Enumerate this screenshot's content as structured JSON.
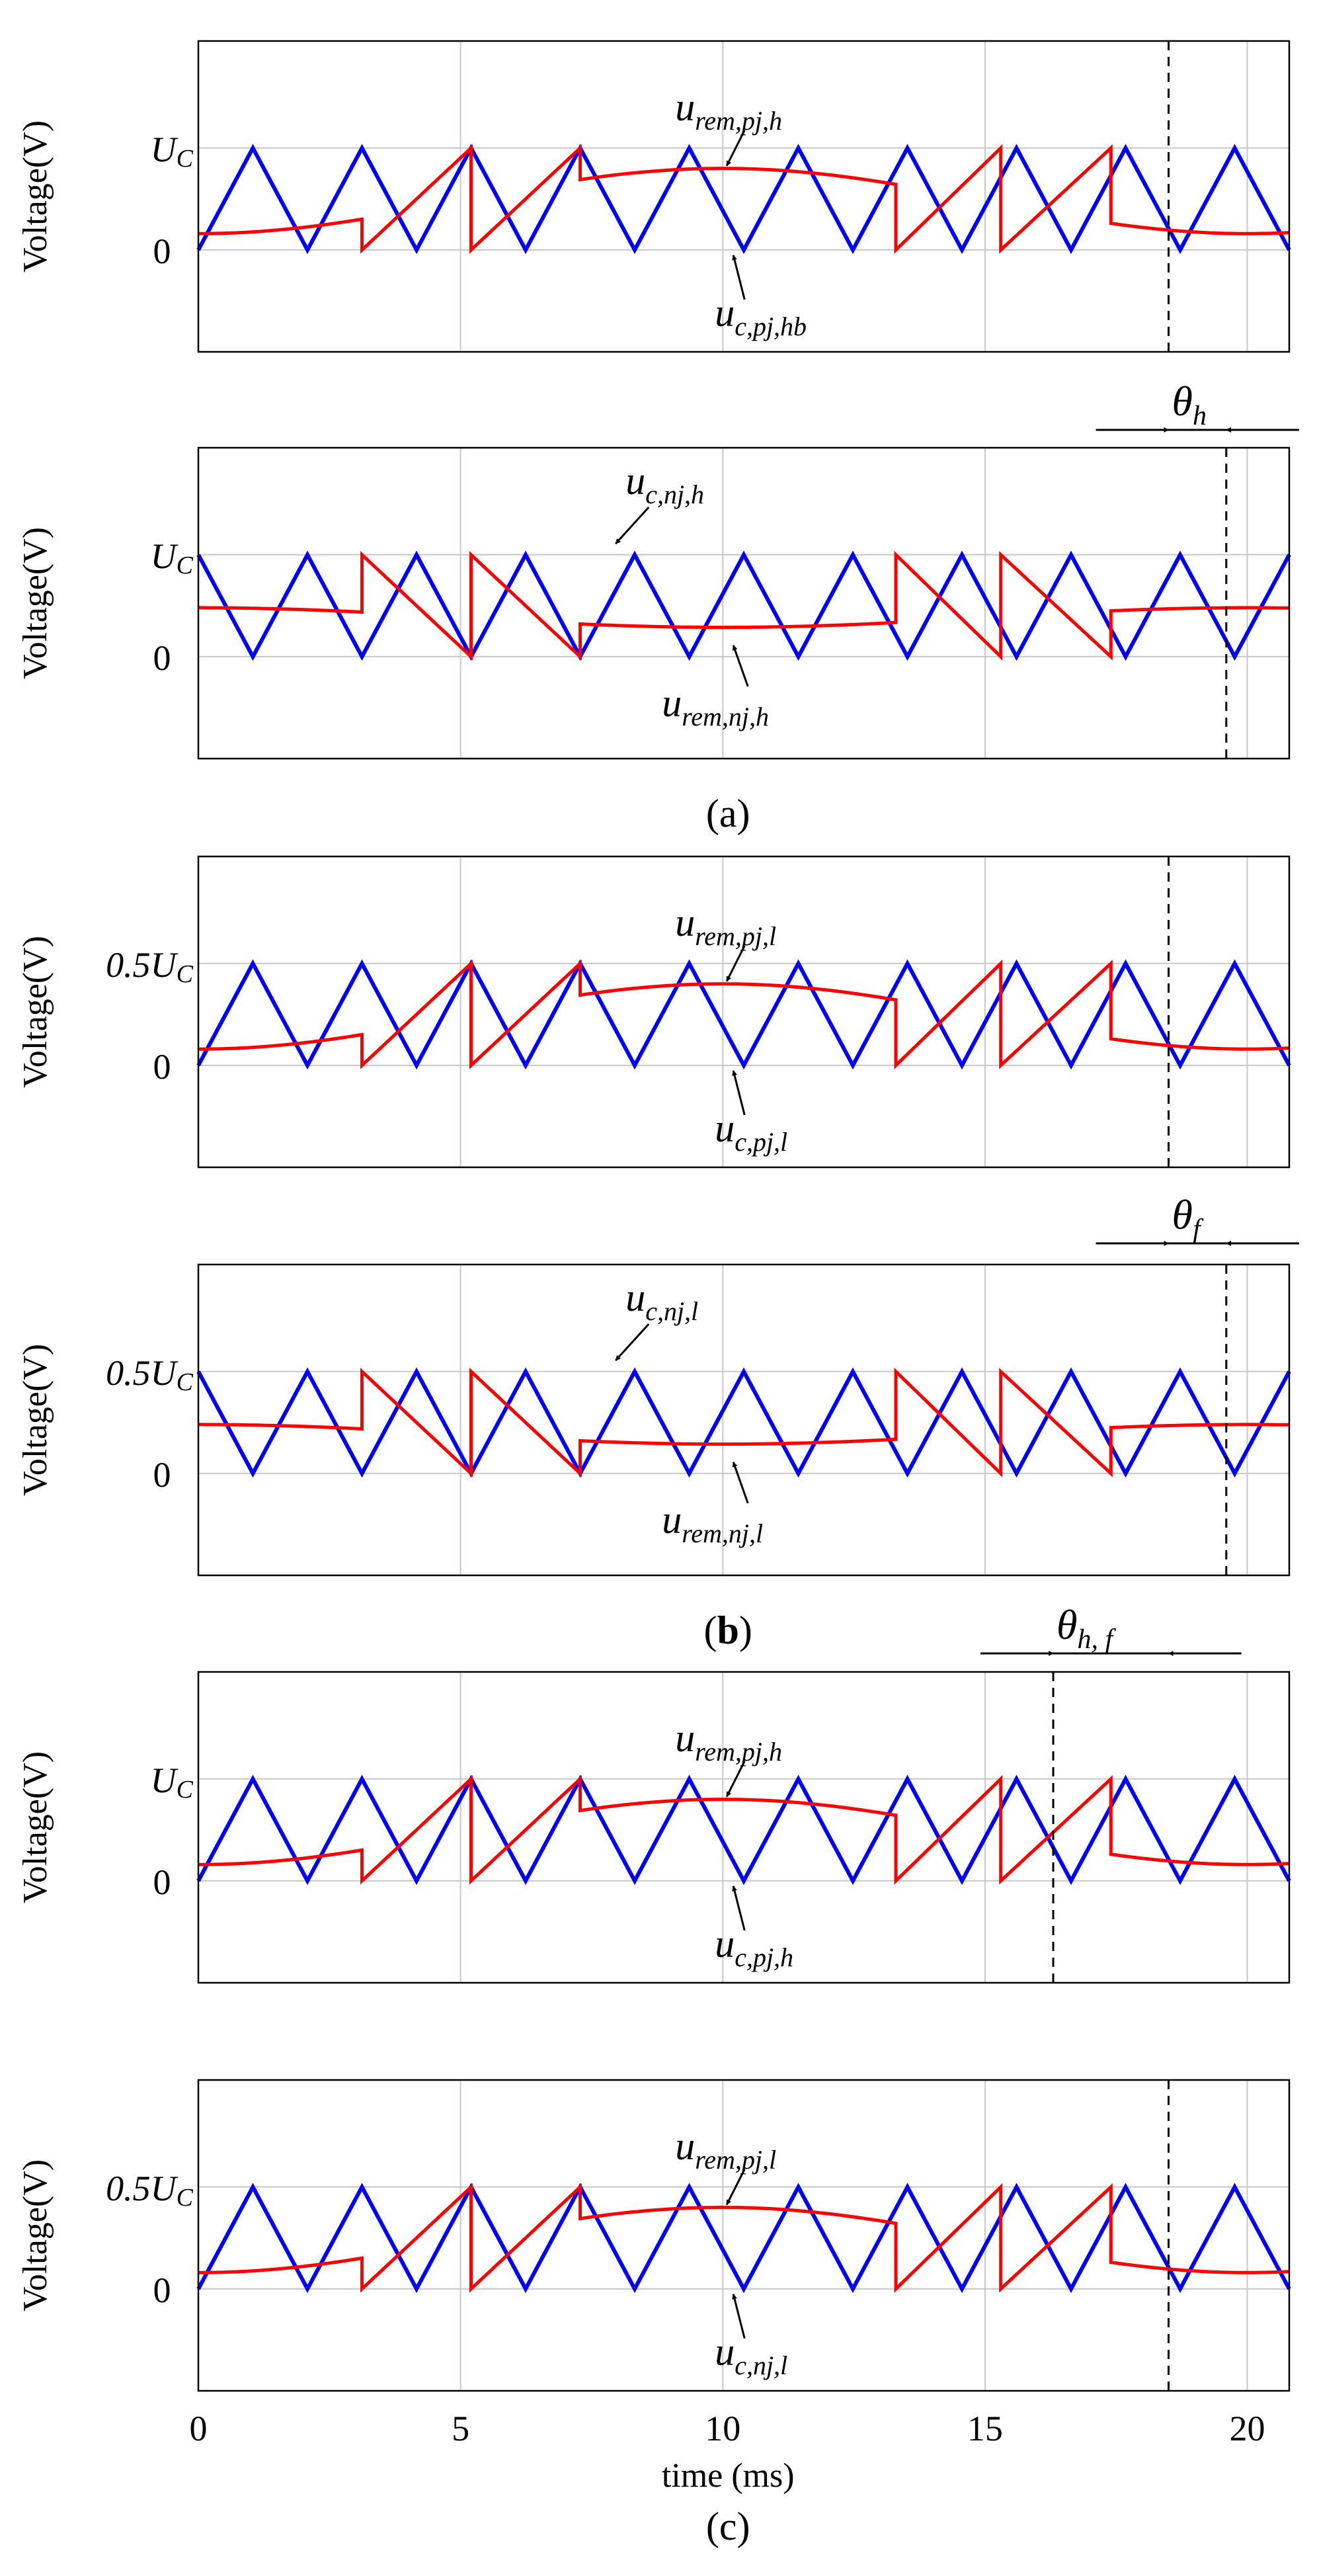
{
  "chart_data": {
    "type": "line",
    "title": "",
    "xlabel": "time (ms)",
    "ylabel": "Voltage(V)",
    "xlim": [
      0,
      20.8
    ],
    "xticks": [
      "0",
      "5",
      "10",
      "15",
      "20"
    ],
    "grid": true,
    "colors": {
      "carrier": "#0000ff",
      "reference": "#ff0000",
      "arrow": "#000000"
    },
    "subfigure_labels": {
      "a": "(a)",
      "b_open": "(",
      "b_bold": "b",
      "b_close": ")",
      "c": "(c)"
    },
    "panels": [
      {
        "id": "a1",
        "ylim": [
          -1.0,
          2.05
        ],
        "level": 1.0,
        "y_label": "Voltage(V)",
        "tick_top_a": "U",
        "tick_top_b": "C",
        "tick_zero": "0",
        "carrier_phase": "up",
        "ref_type": "pos",
        "dashed_x": 18.5,
        "annotations": [
          {
            "main": "u",
            "sub": "rem,pj,h"
          },
          {
            "main": "u",
            "sub": "c,pj,hb"
          }
        ]
      },
      {
        "id": "a2",
        "ylim": [
          -1.0,
          2.05
        ],
        "level": 1.0,
        "y_label": "Voltage(V)",
        "tick_top_a": "U",
        "tick_top_b": "C",
        "tick_zero": "0",
        "carrier_phase": "down",
        "ref_type": "neg",
        "dashed_x": 19.6,
        "annotations": [
          {
            "main": "u",
            "sub": "c,nj,h"
          },
          {
            "main": "u",
            "sub": "rem,nj,h"
          }
        ]
      },
      {
        "id": "b1",
        "ylim": [
          -1.0,
          2.05
        ],
        "level": 1.0,
        "y_label": "Voltage(V)",
        "tick_top_a": "0.5U",
        "tick_top_b": "C",
        "tick_zero": "0",
        "carrier_phase": "up",
        "ref_type": "pos",
        "dashed_x": 18.5,
        "annotations": [
          {
            "main": "u",
            "sub": "rem,pj,l"
          },
          {
            "main": "u",
            "sub": "c,pj,l"
          }
        ]
      },
      {
        "id": "b2",
        "ylim": [
          -1.0,
          2.05
        ],
        "level": 1.0,
        "y_label": "Voltage(V)",
        "tick_top_a": "0.5U",
        "tick_top_b": "C",
        "tick_zero": "0",
        "carrier_phase": "down",
        "ref_type": "neg",
        "dashed_x": 19.6,
        "annotations": [
          {
            "main": "u",
            "sub": "c,nj,l"
          },
          {
            "main": "u",
            "sub": "rem,nj,l"
          }
        ]
      },
      {
        "id": "c1",
        "ylim": [
          -1.0,
          2.05
        ],
        "level": 1.0,
        "y_label": "Voltage(V)",
        "tick_top_a": "U",
        "tick_top_b": "C",
        "tick_zero": "0",
        "carrier_phase": "up",
        "ref_type": "pos",
        "dashed_x": 16.3,
        "annotations": [
          {
            "main": "u",
            "sub": "rem,pj,h"
          },
          {
            "main": "u",
            "sub": "c,pj,h"
          }
        ]
      },
      {
        "id": "c2",
        "ylim": [
          -1.0,
          2.05
        ],
        "level": 1.0,
        "y_label": "Voltage(V)",
        "tick_top_a": "0.5U",
        "tick_top_b": "C",
        "tick_zero": "0",
        "carrier_phase": "up",
        "ref_type": "pos",
        "dashed_x": 18.5,
        "annotations": [
          {
            "main": "u",
            "sub": "rem,pj,l"
          },
          {
            "main": "u",
            "sub": "c,nj,l"
          }
        ]
      }
    ],
    "phase_shifts": [
      {
        "main": "θ",
        "sub": "h",
        "from_x": 18.5,
        "to_x": 19.6
      },
      {
        "main": "θ",
        "sub": "f",
        "from_x": 18.5,
        "to_x": 19.6
      },
      {
        "main": "θ",
        "sub": "h, f",
        "from_x": 16.3,
        "to_x": 18.5
      }
    ],
    "carrier": {
      "period_ms": 2.08,
      "min": 0,
      "max": 1
    },
    "reference": {
      "segment_breaks_ms": [
        3.12,
        5.2,
        7.28,
        13.3,
        15.3,
        17.4
      ],
      "pos_center": 0.8,
      "pos_amp": 0.64,
      "neg_center": 0.5,
      "neg_amp": 0.35
    }
  }
}
